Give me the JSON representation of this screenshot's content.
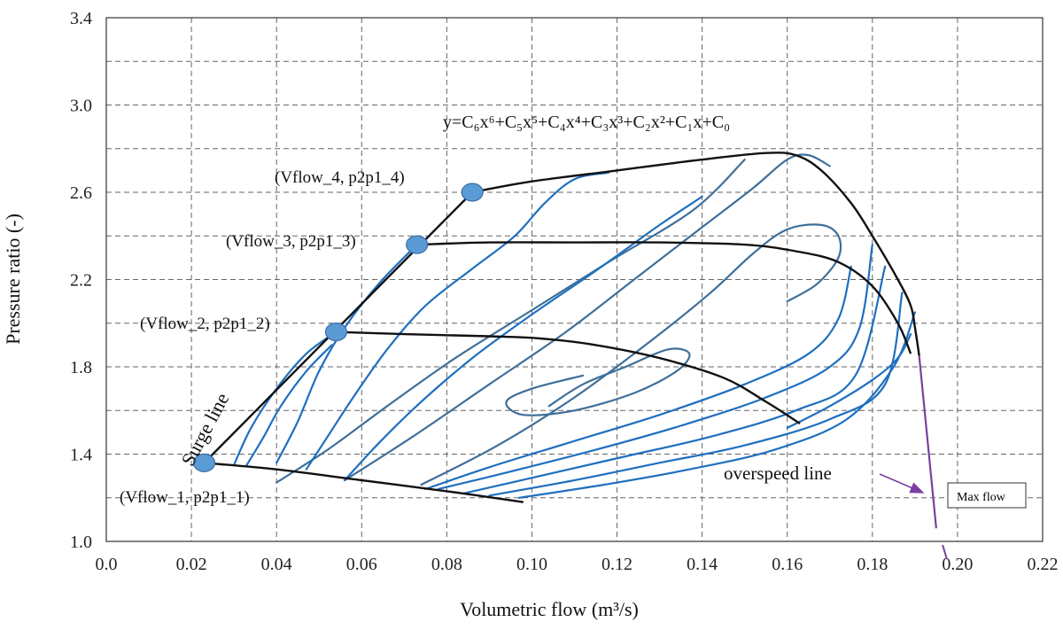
{
  "colors": {
    "speed_line": "#1f6fbf",
    "efficiency_contour": "#3f6f99",
    "surge_line": "#111111",
    "fit_curve": "#c0262d",
    "overspeed_line": "#7a3fa0",
    "marker_fill": "#5b9bd5",
    "marker_stroke": "#3a6ea5",
    "grid": "#666666"
  },
  "chart_data": {
    "type": "line",
    "xlabel": "Volumetric flow (m³/s)",
    "ylabel": "Pressure ratio (-)",
    "xlim": [
      0.0,
      0.22
    ],
    "ylim": [
      1.0,
      3.4
    ],
    "x_ticks": [
      "0.0",
      "0.02",
      "0.04",
      "0.06",
      "0.08",
      "0.10",
      "0.12",
      "0.14",
      "0.16",
      "0.18",
      "0.20",
      "0.22"
    ],
    "y_ticks": [
      "1.0",
      "1.4",
      "1.8",
      "2.2",
      "2.6",
      "3.0",
      "3.4"
    ],
    "grid": true,
    "equation": "y=C₆x⁶+C₅x⁵+C₄x⁴+C₃x³+C₂x²+C₁x+C₀",
    "surge_line": {
      "label": "Surge line",
      "x": [
        0.023,
        0.086
      ],
      "y": [
        1.36,
        2.6
      ]
    },
    "surge_points": [
      {
        "label": "(Vflow_1, p2p1_1)",
        "x": 0.023,
        "y": 1.36
      },
      {
        "label": "(Vflow_2, p2p1_2)",
        "x": 0.054,
        "y": 1.96
      },
      {
        "label": "(Vflow_3, p2p1_3)",
        "x": 0.073,
        "y": 2.36
      },
      {
        "label": "(Vflow_4, p2p1_4)",
        "x": 0.086,
        "y": 2.6
      }
    ],
    "fitted_speed_lines": [
      {
        "x": [
          0.023,
          0.04,
          0.06,
          0.08,
          0.098
        ],
        "y": [
          1.36,
          1.33,
          1.28,
          1.23,
          1.18
        ]
      },
      {
        "x": [
          0.054,
          0.07,
          0.09,
          0.102,
          0.115,
          0.13,
          0.145,
          0.155,
          0.163
        ],
        "y": [
          1.96,
          1.95,
          1.94,
          1.93,
          1.9,
          1.84,
          1.75,
          1.64,
          1.54
        ]
      },
      {
        "x": [
          0.073,
          0.09,
          0.11,
          0.13,
          0.15,
          0.162,
          0.172,
          0.18,
          0.186,
          0.189
        ],
        "y": [
          2.36,
          2.37,
          2.37,
          2.37,
          2.36,
          2.33,
          2.28,
          2.17,
          2.0,
          1.86
        ]
      },
      {
        "x": [
          0.086,
          0.1,
          0.12,
          0.14,
          0.155,
          0.162,
          0.168,
          0.175,
          0.18,
          0.186,
          0.189,
          0.19,
          0.191
        ],
        "y": [
          2.6,
          2.65,
          2.7,
          2.75,
          2.78,
          2.77,
          2.7,
          2.55,
          2.4,
          2.2,
          2.08,
          1.98,
          1.85
        ]
      }
    ],
    "overspeed_line": {
      "label": "overspeed line",
      "x": [
        0.191,
        0.195
      ],
      "y": [
        1.85,
        1.06
      ]
    },
    "max_flow": {
      "label": "Max flow",
      "x": 0.198,
      "y": 1.0
    },
    "speed_lines": [
      {
        "x": [
          0.03,
          0.034,
          0.04,
          0.047,
          0.054
        ],
        "y": [
          1.35,
          1.52,
          1.7,
          1.86,
          1.96
        ]
      },
      {
        "x": [
          0.033,
          0.037,
          0.041,
          0.047,
          0.053
        ],
        "y": [
          1.35,
          1.48,
          1.62,
          1.78,
          1.9
        ]
      },
      {
        "x": [
          0.04,
          0.045,
          0.05,
          0.056,
          0.064,
          0.073
        ],
        "y": [
          1.36,
          1.55,
          1.78,
          1.98,
          2.18,
          2.36
        ]
      },
      {
        "x": [
          0.047,
          0.052,
          0.058,
          0.066,
          0.075,
          0.086,
          0.096,
          0.103,
          0.11,
          0.118
        ],
        "y": [
          1.33,
          1.48,
          1.66,
          1.88,
          2.08,
          2.25,
          2.4,
          2.55,
          2.66,
          2.69
        ]
      },
      {
        "x": [
          0.056,
          0.064,
          0.074,
          0.086,
          0.1,
          0.115,
          0.13,
          0.14
        ],
        "y": [
          1.28,
          1.45,
          1.64,
          1.84,
          2.04,
          2.24,
          2.45,
          2.58
        ]
      },
      {
        "x": [
          0.075,
          0.09,
          0.11,
          0.13,
          0.15,
          0.165,
          0.172,
          0.175
        ],
        "y": [
          1.24,
          1.34,
          1.46,
          1.58,
          1.72,
          1.86,
          2.02,
          2.26
        ]
      },
      {
        "x": [
          0.078,
          0.095,
          0.115,
          0.135,
          0.155,
          0.17,
          0.177,
          0.18
        ],
        "y": [
          1.24,
          1.32,
          1.42,
          1.53,
          1.66,
          1.8,
          1.98,
          2.36
        ]
      },
      {
        "x": [
          0.084,
          0.102,
          0.122,
          0.142,
          0.162,
          0.176,
          0.183
        ],
        "y": [
          1.22,
          1.3,
          1.39,
          1.48,
          1.6,
          1.76,
          2.26
        ]
      },
      {
        "x": [
          0.09,
          0.11,
          0.13,
          0.15,
          0.17,
          0.183,
          0.187
        ],
        "y": [
          1.21,
          1.28,
          1.36,
          1.44,
          1.56,
          1.72,
          2.14
        ]
      },
      {
        "x": [
          0.097,
          0.117,
          0.137,
          0.157,
          0.174,
          0.185,
          0.19
        ],
        "y": [
          1.2,
          1.26,
          1.33,
          1.42,
          1.56,
          1.8,
          2.05
        ]
      },
      {
        "x": [
          0.16,
          0.17,
          0.18,
          0.186,
          0.189
        ],
        "y": [
          1.52,
          1.62,
          1.74,
          1.84,
          1.95
        ]
      }
    ],
    "efficiency_contours": [
      {
        "x": [
          0.04,
          0.052,
          0.066,
          0.082,
          0.1,
          0.118,
          0.138,
          0.15
        ],
        "y": [
          1.27,
          1.42,
          1.62,
          1.84,
          2.06,
          2.28,
          2.52,
          2.75
        ]
      },
      {
        "x": [
          0.056,
          0.072,
          0.09,
          0.108,
          0.124,
          0.14,
          0.152,
          0.16,
          0.165,
          0.17
        ],
        "y": [
          1.28,
          1.48,
          1.72,
          1.96,
          2.2,
          2.44,
          2.62,
          2.75,
          2.77,
          2.72
        ]
      },
      {
        "x": [
          0.074,
          0.092,
          0.11,
          0.128,
          0.142,
          0.152,
          0.16,
          0.168,
          0.172,
          0.172,
          0.167,
          0.16
        ],
        "y": [
          1.26,
          1.44,
          1.66,
          1.92,
          2.14,
          2.32,
          2.43,
          2.45,
          2.4,
          2.3,
          2.18,
          2.1
        ]
      },
      {
        "x": [
          0.104,
          0.112,
          0.122,
          0.132,
          0.137,
          0.134,
          0.124,
          0.11,
          0.098,
          0.094,
          0.1,
          0.112
        ],
        "y": [
          1.62,
          1.72,
          1.8,
          1.88,
          1.86,
          1.78,
          1.68,
          1.6,
          1.58,
          1.64,
          1.7,
          1.76
        ]
      }
    ]
  }
}
